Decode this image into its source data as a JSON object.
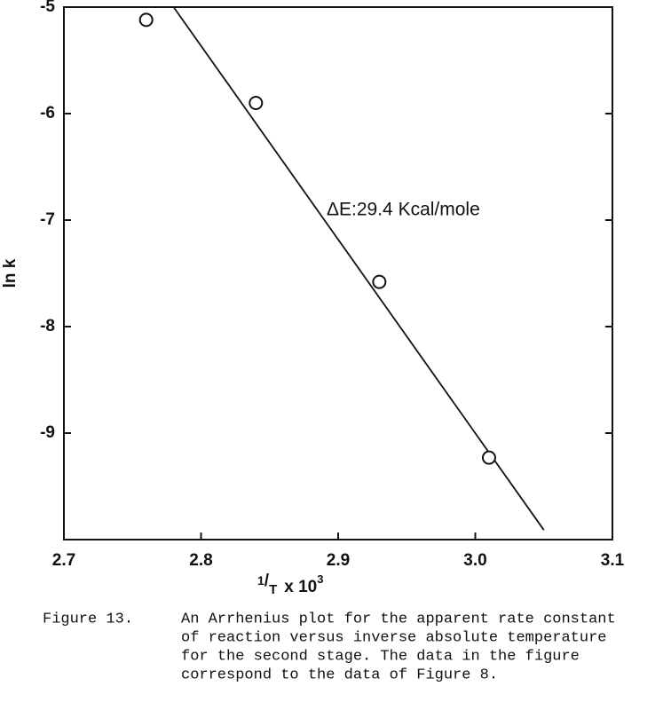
{
  "chart_data": {
    "type": "scatter",
    "xlabel": {
      "numerator": "1",
      "denominator": "T",
      "rest": "x 10",
      "exponent": "3"
    },
    "ylabel": "ln k",
    "annotation": "ΔE:29.4 Kcal/mole",
    "x": [
      2.76,
      2.84,
      2.93,
      3.01
    ],
    "values": [
      -5.12,
      -5.9,
      -7.58,
      -9.23
    ],
    "fit": {
      "x": [
        2.78,
        3.05
      ],
      "values": [
        -5.0,
        -9.91
      ]
    },
    "color": "#111111",
    "xlim": [
      2.7,
      3.1
    ],
    "ylim": [
      -10,
      -5
    ],
    "xticks": [
      2.7,
      2.8,
      2.9,
      {
        "value": 3,
        "label": "3.0"
      },
      3.1
    ],
    "yticks": [
      -5,
      -6,
      -7,
      -8,
      -9
    ]
  },
  "caption": {
    "label": "Figure 13.",
    "lines": [
      "An Arrhenius plot for the apparent rate constant",
      "of reaction versus inverse absolute temperature",
      "for the second stage.  The data in the figure",
      "correspond to the data of Figure 8."
    ]
  }
}
